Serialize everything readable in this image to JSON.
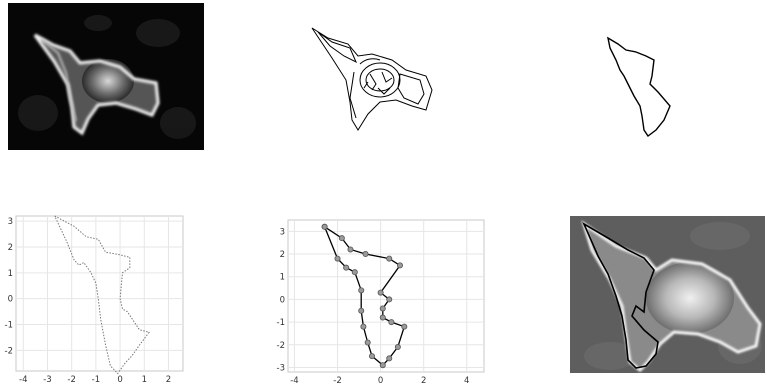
{
  "panels": [
    {
      "name": "ct-image-raw",
      "kind": "grayscale-image"
    },
    {
      "name": "edge-map",
      "kind": "edge-detection"
    },
    {
      "name": "selected-contour",
      "kind": "single-contour"
    },
    {
      "name": "contour-plot",
      "kind": "plot"
    },
    {
      "name": "contour-control-points-plot",
      "kind": "plot"
    },
    {
      "name": "contour-overlay-image",
      "kind": "grayscale-image-with-contour"
    }
  ],
  "plot_left": {
    "xticks": [
      "-4",
      "-3",
      "-2",
      "-1",
      "0",
      "1",
      "2"
    ],
    "yticks": [
      "3",
      "2",
      "1",
      "0",
      "-1",
      "-2"
    ]
  },
  "plot_middle": {
    "xticks": [
      "-4",
      "-2",
      "0",
      "2",
      "4"
    ],
    "yticks": [
      "3",
      "2",
      "1",
      "0",
      "-1",
      "-2",
      "-3"
    ]
  },
  "chart_data": [
    {
      "type": "line",
      "title": "",
      "xlabel": "",
      "ylabel": "",
      "xlim": [
        -4.3,
        2.6
      ],
      "ylim": [
        -2.8,
        3.2
      ],
      "grid": true,
      "series": [
        {
          "style": "dotted",
          "x": [
            -2.7,
            -1.9,
            -1.4,
            -0.9,
            -0.6,
            0.0,
            0.4,
            0.4,
            0.1,
            0.0,
            0.1,
            0.3,
            0.8,
            1.2,
            0.8,
            0.5,
            0.2,
            -0.1,
            -0.4,
            -0.6,
            -0.8,
            -0.9,
            -1.0,
            -1.2,
            -1.5,
            -1.7,
            -1.9,
            -2.2,
            -2.7
          ],
          "y": [
            3.2,
            2.8,
            2.4,
            2.3,
            1.8,
            1.7,
            1.6,
            1.2,
            1.0,
            0.0,
            -0.4,
            -0.5,
            -1.2,
            -1.3,
            -1.8,
            -2.2,
            -2.5,
            -2.9,
            -2.6,
            -1.8,
            -0.8,
            0.0,
            0.6,
            1.0,
            1.4,
            1.3,
            1.5,
            2.2,
            3.2
          ]
        }
      ]
    },
    {
      "type": "scatter",
      "title": "",
      "xlabel": "",
      "ylabel": "",
      "xlim": [
        -4.3,
        4.8
      ],
      "ylim": [
        -3.2,
        3.5
      ],
      "grid": true,
      "series": [
        {
          "style": "line-with-circle-markers",
          "x": [
            -2.6,
            -1.8,
            -1.4,
            -0.7,
            0.4,
            0.9,
            0.0,
            0.4,
            0.1,
            0.1,
            0.5,
            1.1,
            0.8,
            0.4,
            0.1,
            -0.4,
            -0.6,
            -0.8,
            -0.9,
            -0.9,
            -1.2,
            -1.6,
            -2.0,
            -2.6
          ],
          "y": [
            3.2,
            2.7,
            2.2,
            2.0,
            1.8,
            1.5,
            0.3,
            0.0,
            -0.4,
            -0.8,
            -1.0,
            -1.2,
            -2.1,
            -2.6,
            -2.9,
            -2.5,
            -1.9,
            -1.2,
            -0.5,
            0.4,
            1.2,
            1.4,
            1.8,
            3.2
          ]
        }
      ]
    }
  ]
}
